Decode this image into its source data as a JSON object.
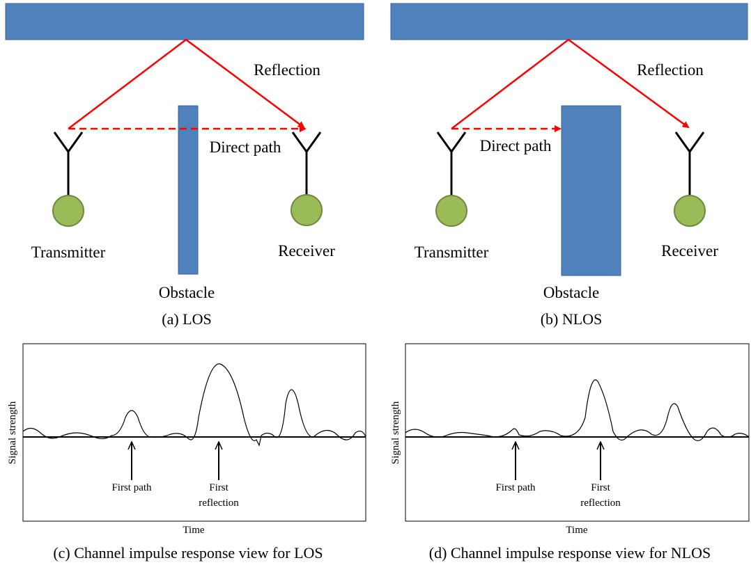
{
  "panels": [
    {
      "reflection": "Reflection",
      "direct_path": "Direct path",
      "transmitter": "Transmitter",
      "receiver": "Receiver",
      "obstacle": "Obstacle",
      "caption": "(a) LOS"
    },
    {
      "reflection": "Reflection",
      "direct_path": "Direct path",
      "transmitter": "Transmitter",
      "receiver": "Receiver",
      "obstacle": "Obstacle",
      "caption": "(b) NLOS"
    }
  ],
  "plots": [
    {
      "y_label": "Signal strength",
      "first_path": "First path",
      "first_reflection": [
        "First",
        "reflection"
      ],
      "x_label": "Time",
      "caption": "(c) Channel impulse response view for LOS"
    },
    {
      "y_label": "Signal strength",
      "first_path": "First path",
      "first_reflection": [
        "First",
        "reflection"
      ],
      "x_label": "Time",
      "caption": "(d) Channel impulse response view for NLOS"
    }
  ]
}
